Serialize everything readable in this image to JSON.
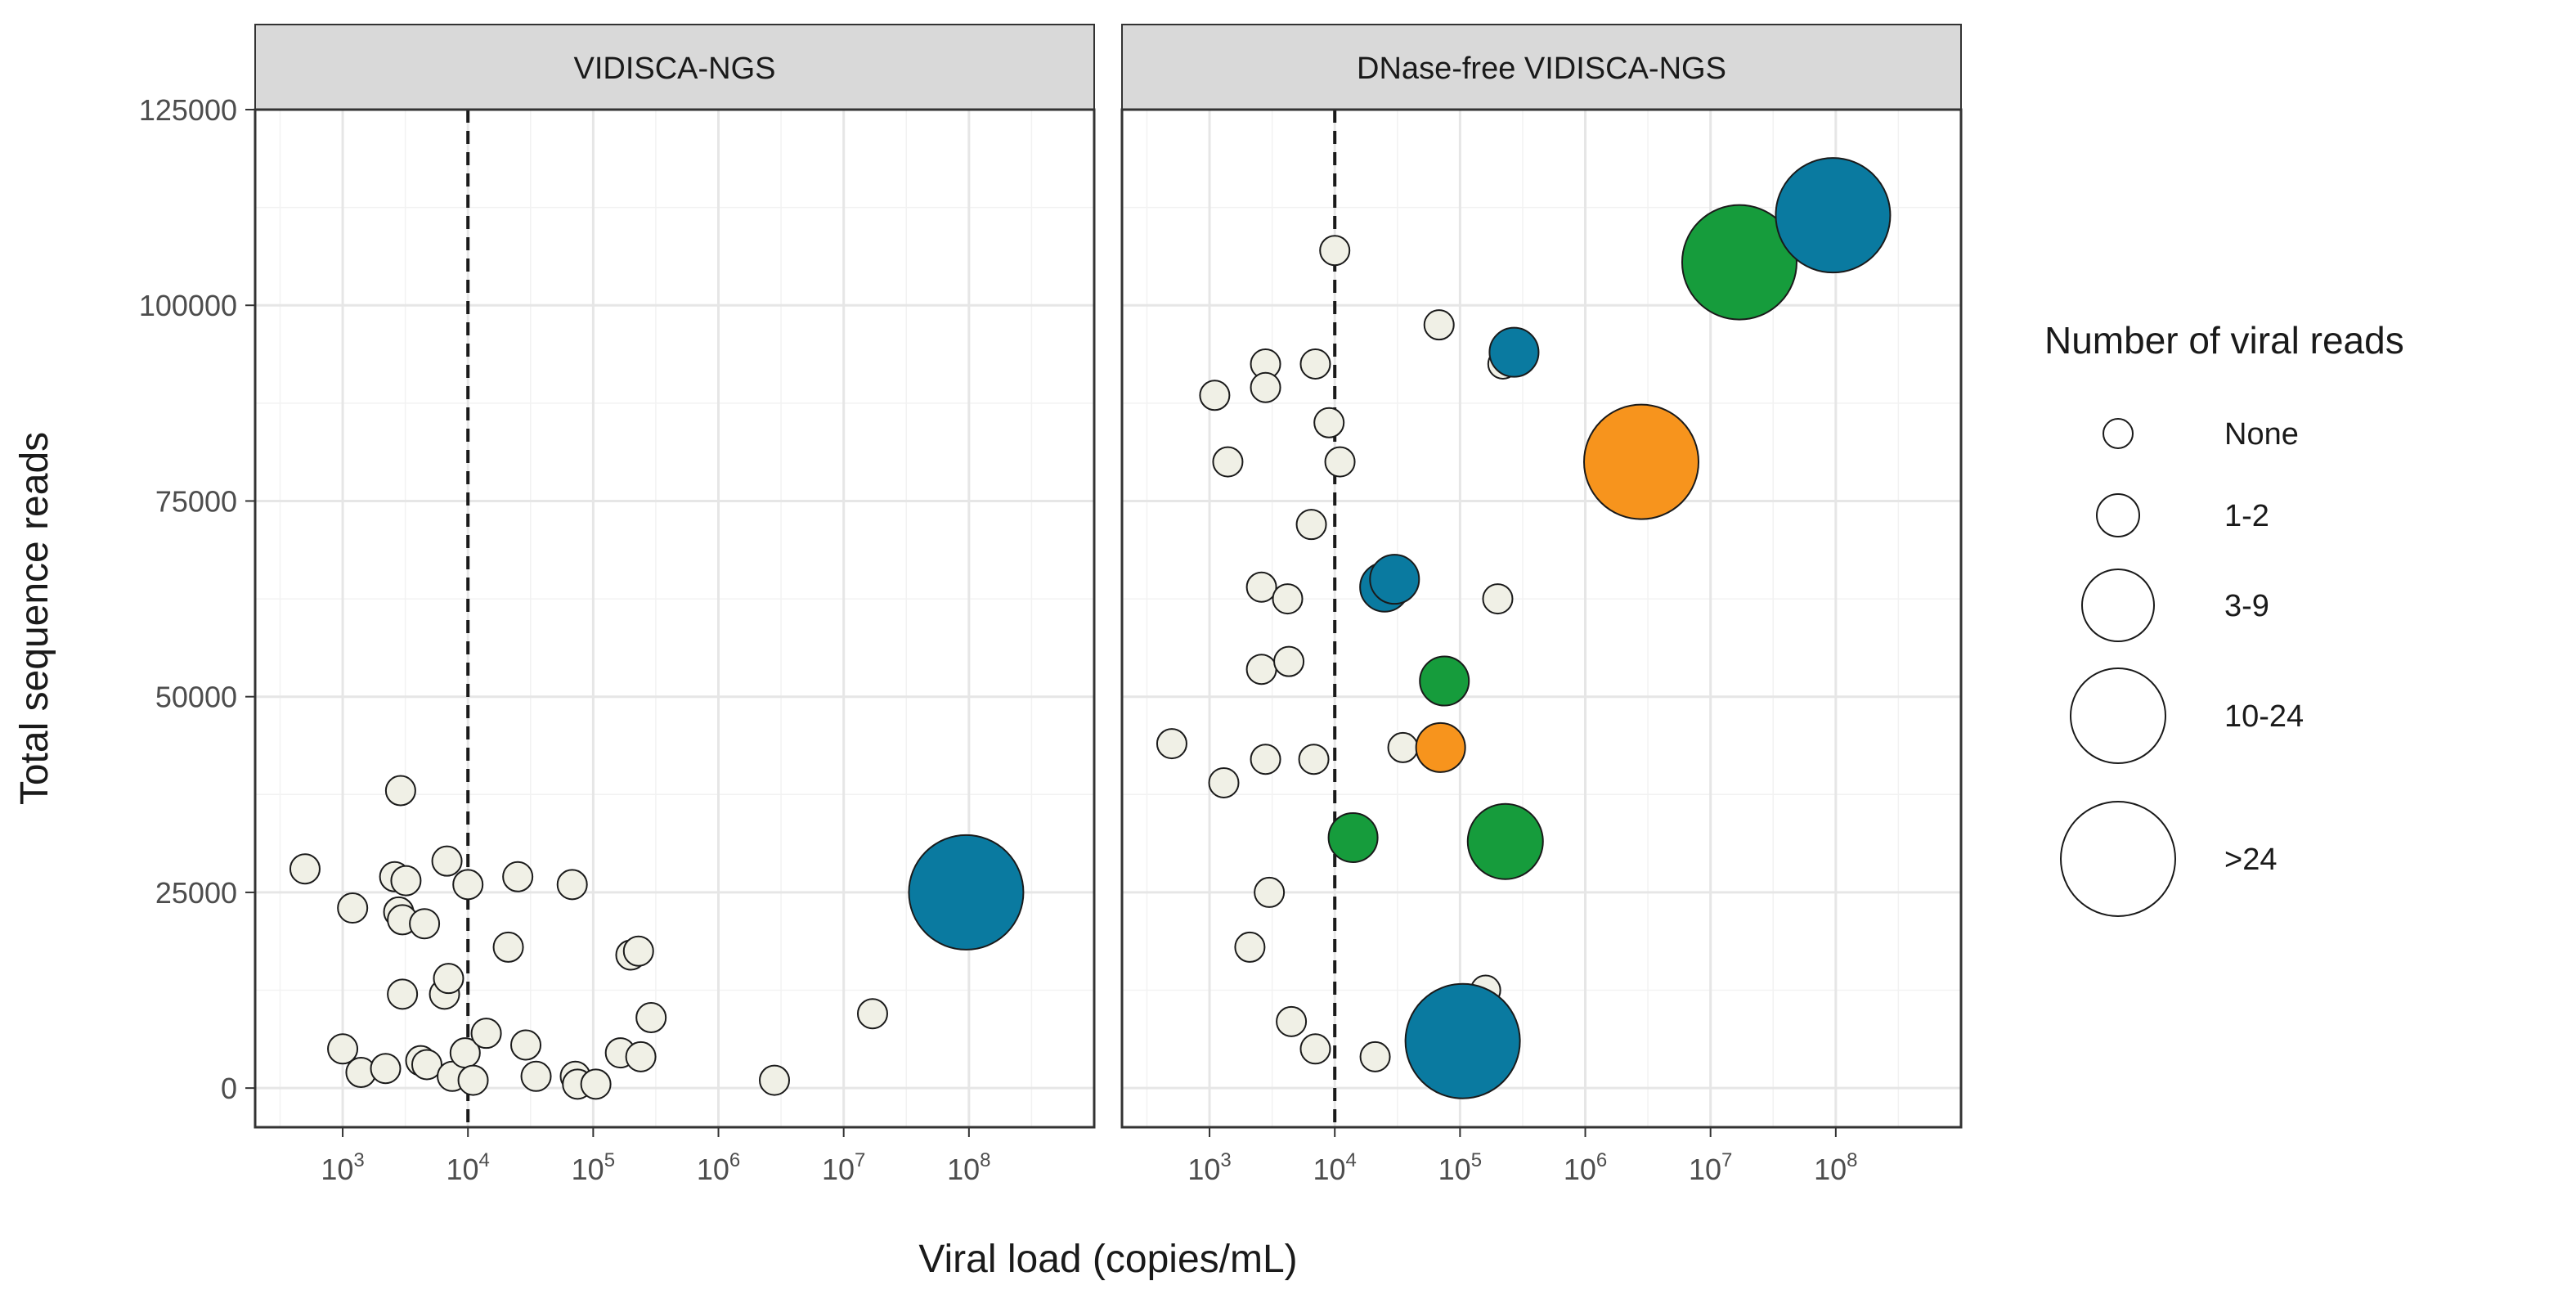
{
  "chart_data": {
    "type": "scatter",
    "ylabel": "Total sequence reads",
    "xlabel": "Viral load (copies/mL)",
    "x_scale": "log10",
    "xlim": [
      200,
      1000000000
    ],
    "ylim": [
      -5000,
      125000
    ],
    "y_ticks": [
      0,
      25000,
      50000,
      75000,
      100000,
      125000
    ],
    "y_tick_labels": [
      "0",
      "25000",
      "50000",
      "75000",
      "100000",
      "125000"
    ],
    "x_tick_base": "10",
    "x_tick_exponents": [
      "3",
      "4",
      "5",
      "6",
      "7",
      "8"
    ],
    "threshold_x": 10000,
    "legend": {
      "title": "Number of viral reads",
      "entries": [
        "None",
        "1-2",
        "3-9",
        "10-24",
        ">24"
      ],
      "sizes_relative": [
        1,
        1.3,
        1.65,
        2.05,
        2.5
      ]
    },
    "categories": [
      "None",
      "1-2",
      "3-9",
      "10-24",
      ">24"
    ],
    "category_colors": {
      "none": "#f0f0e6",
      "blue": "#0a7aa0",
      "green": "#169c3c",
      "orange": "#f7941d"
    },
    "panels": [
      {
        "title": "VIDISCA-NGS",
        "points": [
          {
            "x": 500,
            "y": 28000,
            "reads": "None",
            "color": "none"
          },
          {
            "x": 1000,
            "y": 5000,
            "reads": "None",
            "color": "none"
          },
          {
            "x": 1200,
            "y": 23000,
            "reads": "None",
            "color": "none"
          },
          {
            "x": 1400,
            "y": 2000,
            "reads": "None",
            "color": "none"
          },
          {
            "x": 2200,
            "y": 2500,
            "reads": "None",
            "color": "none"
          },
          {
            "x": 2600,
            "y": 27000,
            "reads": "None",
            "color": "none"
          },
          {
            "x": 2800,
            "y": 22500,
            "reads": "None",
            "color": "none"
          },
          {
            "x": 2900,
            "y": 38000,
            "reads": "None",
            "color": "none"
          },
          {
            "x": 3000,
            "y": 12000,
            "reads": "None",
            "color": "none"
          },
          {
            "x": 3000,
            "y": 21500,
            "reads": "None",
            "color": "none"
          },
          {
            "x": 3200,
            "y": 26500,
            "reads": "None",
            "color": "none"
          },
          {
            "x": 4200,
            "y": 3500,
            "reads": "None",
            "color": "none"
          },
          {
            "x": 4500,
            "y": 21000,
            "reads": "None",
            "color": "none"
          },
          {
            "x": 4700,
            "y": 3000,
            "reads": "None",
            "color": "none"
          },
          {
            "x": 6500,
            "y": 12000,
            "reads": "None",
            "color": "none"
          },
          {
            "x": 6800,
            "y": 29000,
            "reads": "None",
            "color": "none"
          },
          {
            "x": 7000,
            "y": 14000,
            "reads": "None",
            "color": "none"
          },
          {
            "x": 7500,
            "y": 1500,
            "reads": "None",
            "color": "none"
          },
          {
            "x": 9500,
            "y": 4500,
            "reads": "None",
            "color": "none"
          },
          {
            "x": 10000,
            "y": 26000,
            "reads": "None",
            "color": "none"
          },
          {
            "x": 11000,
            "y": 1000,
            "reads": "None",
            "color": "none"
          },
          {
            "x": 14000,
            "y": 7000,
            "reads": "None",
            "color": "none"
          },
          {
            "x": 21000,
            "y": 18000,
            "reads": "None",
            "color": "none"
          },
          {
            "x": 25000,
            "y": 27000,
            "reads": "None",
            "color": "none"
          },
          {
            "x": 29000,
            "y": 5500,
            "reads": "None",
            "color": "none"
          },
          {
            "x": 35000,
            "y": 1500,
            "reads": "None",
            "color": "none"
          },
          {
            "x": 68000,
            "y": 26000,
            "reads": "None",
            "color": "none"
          },
          {
            "x": 72000,
            "y": 1500,
            "reads": "None",
            "color": "none"
          },
          {
            "x": 75000,
            "y": 500,
            "reads": "None",
            "color": "none"
          },
          {
            "x": 105000,
            "y": 500,
            "reads": "None",
            "color": "none"
          },
          {
            "x": 165000,
            "y": 4500,
            "reads": "None",
            "color": "none"
          },
          {
            "x": 200000,
            "y": 17000,
            "reads": "None",
            "color": "none"
          },
          {
            "x": 230000,
            "y": 17500,
            "reads": "None",
            "color": "none"
          },
          {
            "x": 240000,
            "y": 4000,
            "reads": "None",
            "color": "none"
          },
          {
            "x": 290000,
            "y": 9000,
            "reads": "None",
            "color": "none"
          },
          {
            "x": 2800000,
            "y": 1000,
            "reads": "None",
            "color": "none"
          },
          {
            "x": 17000000,
            "y": 9500,
            "reads": "None",
            "color": "none"
          },
          {
            "x": 95000000,
            "y": 25000,
            "reads": ">24",
            "color": "blue"
          }
        ]
      },
      {
        "title": "DNase-free VIDISCA-NGS",
        "points": [
          {
            "x": 500,
            "y": 44000,
            "reads": "None",
            "color": "none"
          },
          {
            "x": 1100,
            "y": 88500,
            "reads": "None",
            "color": "none"
          },
          {
            "x": 1300,
            "y": 39000,
            "reads": "None",
            "color": "none"
          },
          {
            "x": 1400,
            "y": 80000,
            "reads": "None",
            "color": "none"
          },
          {
            "x": 2100,
            "y": 18000,
            "reads": "None",
            "color": "none"
          },
          {
            "x": 2600,
            "y": 64000,
            "reads": "None",
            "color": "none"
          },
          {
            "x": 2600,
            "y": 53500,
            "reads": "None",
            "color": "none"
          },
          {
            "x": 2800,
            "y": 92500,
            "reads": "None",
            "color": "none"
          },
          {
            "x": 2800,
            "y": 89500,
            "reads": "None",
            "color": "none"
          },
          {
            "x": 2800,
            "y": 42000,
            "reads": "None",
            "color": "none"
          },
          {
            "x": 3000,
            "y": 25000,
            "reads": "None",
            "color": "none"
          },
          {
            "x": 4200,
            "y": 62500,
            "reads": "None",
            "color": "none"
          },
          {
            "x": 4300,
            "y": 54500,
            "reads": "None",
            "color": "none"
          },
          {
            "x": 4500,
            "y": 8500,
            "reads": "None",
            "color": "none"
          },
          {
            "x": 6500,
            "y": 72000,
            "reads": "None",
            "color": "none"
          },
          {
            "x": 6800,
            "y": 42000,
            "reads": "None",
            "color": "none"
          },
          {
            "x": 7000,
            "y": 92500,
            "reads": "None",
            "color": "none"
          },
          {
            "x": 7000,
            "y": 5000,
            "reads": "None",
            "color": "none"
          },
          {
            "x": 9000,
            "y": 85000,
            "reads": "None",
            "color": "none"
          },
          {
            "x": 10000,
            "y": 107000,
            "reads": "None",
            "color": "none"
          },
          {
            "x": 11000,
            "y": 80000,
            "reads": "None",
            "color": "none"
          },
          {
            "x": 14000,
            "y": 32000,
            "reads": "3-9",
            "color": "green"
          },
          {
            "x": 21000,
            "y": 4000,
            "reads": "None",
            "color": "none"
          },
          {
            "x": 25000,
            "y": 64000,
            "reads": "3-9",
            "color": "blue"
          },
          {
            "x": 30000,
            "y": 65000,
            "reads": "3-9",
            "color": "blue"
          },
          {
            "x": 35000,
            "y": 43500,
            "reads": "None",
            "color": "none"
          },
          {
            "x": 68000,
            "y": 97500,
            "reads": "None",
            "color": "none"
          },
          {
            "x": 70000,
            "y": 43500,
            "reads": "3-9",
            "color": "orange"
          },
          {
            "x": 75000,
            "y": 52000,
            "reads": "3-9",
            "color": "green"
          },
          {
            "x": 105000,
            "y": 6000,
            "reads": ">24",
            "color": "blue"
          },
          {
            "x": 160000,
            "y": 12500,
            "reads": "None",
            "color": "none"
          },
          {
            "x": 200000,
            "y": 62500,
            "reads": "None",
            "color": "none"
          },
          {
            "x": 220000,
            "y": 92500,
            "reads": "None",
            "color": "none"
          },
          {
            "x": 230000,
            "y": 31500,
            "reads": "10-24",
            "color": "green"
          },
          {
            "x": 270000,
            "y": 94000,
            "reads": "3-9",
            "color": "blue"
          },
          {
            "x": 2800000,
            "y": 80000,
            "reads": ">24",
            "color": "orange"
          },
          {
            "x": 17000000,
            "y": 105500,
            "reads": ">24",
            "color": "green"
          },
          {
            "x": 95000000,
            "y": 111500,
            "reads": ">24",
            "color": "blue"
          }
        ]
      }
    ]
  }
}
